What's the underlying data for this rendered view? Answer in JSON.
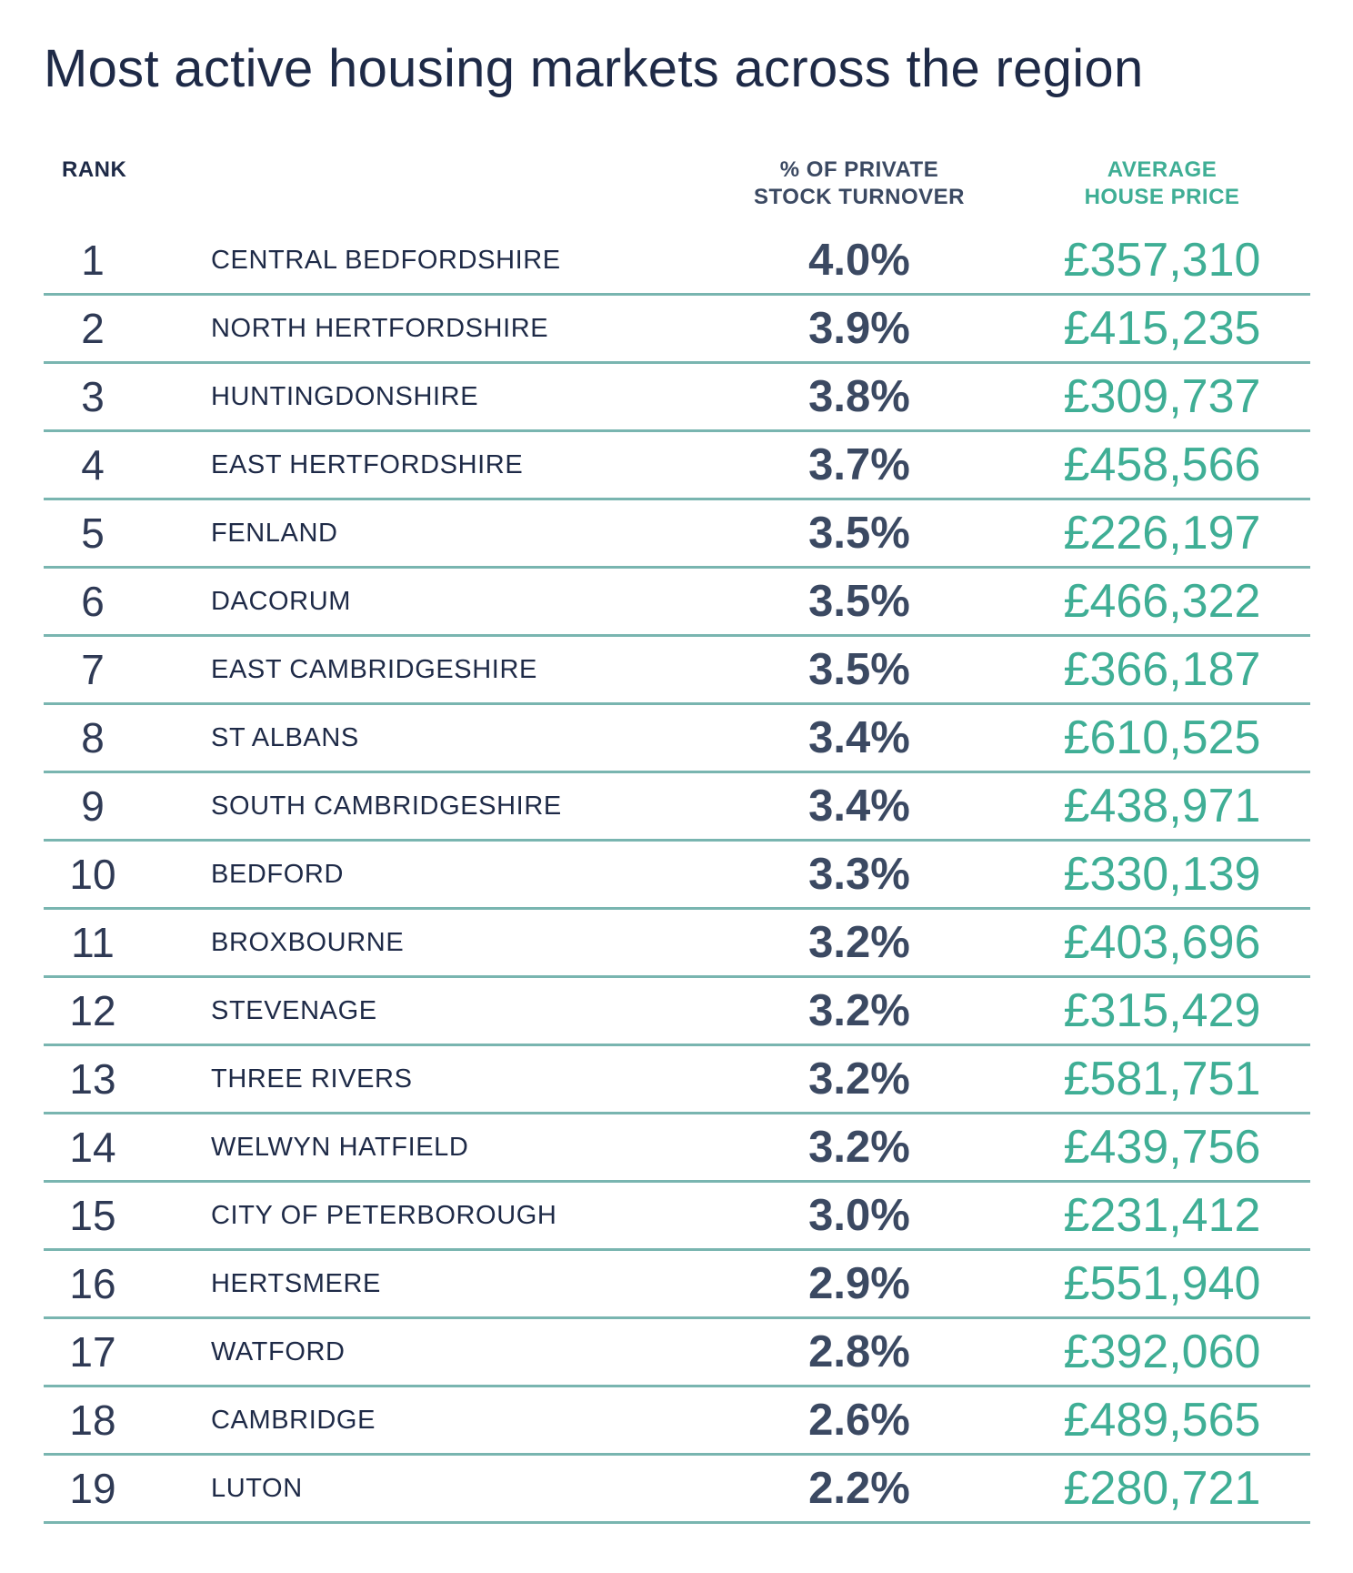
{
  "title": "Most active housing markets across the region",
  "headers": {
    "rank": "RANK",
    "turnover_line1": "% OF PRIVATE",
    "turnover_line2": "STOCK TURNOVER",
    "price_line1": "AVERAGE",
    "price_line2": "HOUSE PRICE"
  },
  "colors": {
    "accent_green": "#3fae95",
    "text_dark": "#1e2a47",
    "divider": "#79b5b0"
  },
  "chart_data": {
    "type": "table",
    "title": "Most active housing markets across the region",
    "columns": [
      "RANK",
      "",
      "% OF PRIVATE STOCK TURNOVER",
      "AVERAGE HOUSE PRICE"
    ],
    "rows": [
      {
        "rank": "1",
        "name": "CENTRAL BEDFORDSHIRE",
        "turnover": "4.0%",
        "price": "£357,310"
      },
      {
        "rank": "2",
        "name": "NORTH HERTFORDSHIRE",
        "turnover": "3.9%",
        "price": "£415,235"
      },
      {
        "rank": "3",
        "name": "HUNTINGDONSHIRE",
        "turnover": "3.8%",
        "price": "£309,737"
      },
      {
        "rank": "4",
        "name": "EAST HERTFORDSHIRE",
        "turnover": "3.7%",
        "price": "£458,566"
      },
      {
        "rank": "5",
        "name": "FENLAND",
        "turnover": "3.5%",
        "price": "£226,197"
      },
      {
        "rank": "6",
        "name": "DACORUM",
        "turnover": "3.5%",
        "price": "£466,322"
      },
      {
        "rank": "7",
        "name": "EAST CAMBRIDGESHIRE",
        "turnover": "3.5%",
        "price": "£366,187"
      },
      {
        "rank": "8",
        "name": "ST ALBANS",
        "turnover": "3.4%",
        "price": "£610,525"
      },
      {
        "rank": "9",
        "name": "SOUTH CAMBRIDGESHIRE",
        "turnover": "3.4%",
        "price": "£438,971"
      },
      {
        "rank": "10",
        "name": "BEDFORD",
        "turnover": "3.3%",
        "price": "£330,139"
      },
      {
        "rank": "11",
        "name": "BROXBOURNE",
        "turnover": "3.2%",
        "price": "£403,696"
      },
      {
        "rank": "12",
        "name": "STEVENAGE",
        "turnover": "3.2%",
        "price": "£315,429"
      },
      {
        "rank": "13",
        "name": "THREE RIVERS",
        "turnover": "3.2%",
        "price": "£581,751"
      },
      {
        "rank": "14",
        "name": "WELWYN HATFIELD",
        "turnover": "3.2%",
        "price": "£439,756"
      },
      {
        "rank": "15",
        "name": "CITY OF PETERBOROUGH",
        "turnover": "3.0%",
        "price": "£231,412"
      },
      {
        "rank": "16",
        "name": "HERTSMERE",
        "turnover": "2.9%",
        "price": "£551,940"
      },
      {
        "rank": "17",
        "name": "WATFORD",
        "turnover": "2.8%",
        "price": "£392,060"
      },
      {
        "rank": "18",
        "name": "CAMBRIDGE",
        "turnover": "2.6%",
        "price": "£489,565"
      },
      {
        "rank": "19",
        "name": "LUTON",
        "turnover": "2.2%",
        "price": "£280,721"
      }
    ]
  }
}
